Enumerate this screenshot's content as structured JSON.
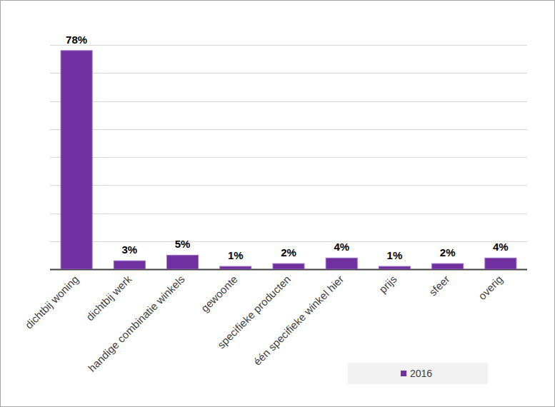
{
  "chart_data": {
    "type": "bar",
    "categories": [
      "dichtbij woning",
      "dichtbij werk",
      "handige combinatie winkels",
      "gewoonte",
      "specifieke producten",
      "één specifieke winkel hier",
      "prijs",
      "sfeer",
      "overig"
    ],
    "series": [
      {
        "name": "2016",
        "color": "#7030a0",
        "values": [
          78,
          3,
          5,
          1,
          2,
          4,
          1,
          2,
          4
        ],
        "value_labels": [
          "78%",
          "3%",
          "5%",
          "1%",
          "2%",
          "4%",
          "1%",
          "2%",
          "4%"
        ]
      }
    ],
    "ylim": [
      0,
      80
    ],
    "yticks": [
      0,
      10,
      20,
      30,
      40,
      50,
      60,
      70,
      80
    ],
    "grid": true,
    "data_labels": true,
    "tick_labels": "x",
    "legend": "bottom-right"
  }
}
